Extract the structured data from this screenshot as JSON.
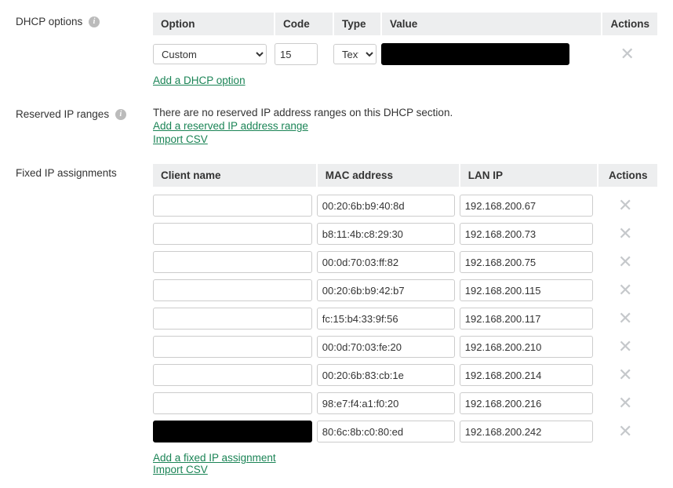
{
  "dhcp_options": {
    "label": "DHCP options",
    "headers": {
      "option": "Option",
      "code": "Code",
      "type": "Type",
      "value": "Value",
      "actions": "Actions"
    },
    "row": {
      "option_selected": "Custom",
      "code": "15",
      "type_selected": "Text",
      "value": ""
    },
    "add_link": "Add a DHCP option"
  },
  "reserved_ranges": {
    "label": "Reserved IP ranges",
    "empty_text": "There are no reserved IP address ranges on this DHCP section.",
    "add_link": "Add a reserved IP address range",
    "import_link": "Import CSV"
  },
  "fixed_ip": {
    "label": "Fixed IP assignments",
    "headers": {
      "client": "Client name",
      "mac": "MAC address",
      "ip": "LAN IP",
      "actions": "Actions"
    },
    "rows": [
      {
        "client": "",
        "mac": "00:20:6b:b9:40:8d",
        "ip": "192.168.200.67",
        "client_redacted": false
      },
      {
        "client": "",
        "mac": "b8:11:4b:c8:29:30",
        "ip": "192.168.200.73",
        "client_redacted": false
      },
      {
        "client": "",
        "mac": "00:0d:70:03:ff:82",
        "ip": "192.168.200.75",
        "client_redacted": false
      },
      {
        "client": "",
        "mac": "00:20:6b:b9:42:b7",
        "ip": "192.168.200.115",
        "client_redacted": false
      },
      {
        "client": "",
        "mac": "fc:15:b4:33:9f:56",
        "ip": "192.168.200.117",
        "client_redacted": false
      },
      {
        "client": "",
        "mac": "00:0d:70:03:fe:20",
        "ip": "192.168.200.210",
        "client_redacted": false
      },
      {
        "client": "",
        "mac": "00:20:6b:83:cb:1e",
        "ip": "192.168.200.214",
        "client_redacted": false
      },
      {
        "client": "",
        "mac": "98:e7:f4:a1:f0:20",
        "ip": "192.168.200.216",
        "client_redacted": false
      },
      {
        "client": "",
        "mac": "80:6c:8b:c0:80:ed",
        "ip": "192.168.200.242",
        "client_redacted": true
      }
    ],
    "add_link": "Add a fixed IP assignment",
    "import_link": "Import CSV"
  }
}
